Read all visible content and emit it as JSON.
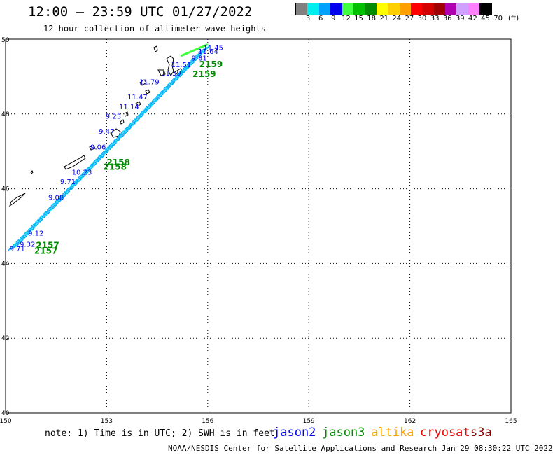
{
  "title": "12:00 – 23:59 UTC 01/27/2022",
  "subtitle": "12 hour collection of altimeter wave heights",
  "legend": {
    "unit": "(ft)",
    "labels": [
      "3",
      "6",
      "9",
      "12",
      "15",
      "18",
      "21",
      "24",
      "27",
      "30",
      "33",
      "36",
      "39",
      "42",
      "45",
      "70"
    ],
    "colors": [
      "#808080",
      "#00eeee",
      "#00a0ff",
      "#0000ee",
      "#40ff40",
      "#00c000",
      "#008c00",
      "#ffff00",
      "#ffd000",
      "#ffa000",
      "#ff0000",
      "#d40000",
      "#a00000",
      "#b000b0",
      "#d0a0ff",
      "#ff80ff",
      "#000000"
    ]
  },
  "axes": {
    "lon_ticks": [
      "150",
      "153",
      "156",
      "159",
      "162",
      "165"
    ],
    "lat_ticks": [
      "50",
      "48",
      "46",
      "44",
      "42",
      "40"
    ]
  },
  "map_data": {
    "lon_range": [
      150,
      165
    ],
    "lat_range": [
      40,
      50
    ],
    "tracks": [
      {
        "satellite": "jason3",
        "time_labels": [
          {
            "text": "2159",
            "lon": 155.75,
            "lat": 49.34
          },
          {
            "text": "2159",
            "lon": 155.55,
            "lat": 49.08
          },
          {
            "text": "2158",
            "lon": 153.0,
            "lat": 46.72
          },
          {
            "text": "2158",
            "lon": 152.9,
            "lat": 46.6
          },
          {
            "text": "2157",
            "lon": 150.9,
            "lat": 44.5
          },
          {
            "text": "2157",
            "lon": 150.85,
            "lat": 44.35
          }
        ],
        "points": [
          {
            "lon": 155.95,
            "lat": 49.78,
            "swh": "11.45"
          },
          {
            "lon": 155.8,
            "lat": 49.68,
            "swh": "11.64"
          },
          {
            "lon": 155.6,
            "lat": 49.5,
            "swh": "9.81"
          },
          {
            "lon": 155.0,
            "lat": 49.33,
            "swh": "11.51"
          },
          {
            "lon": 154.7,
            "lat": 49.1,
            "swh": "11.59"
          },
          {
            "lon": 154.05,
            "lat": 48.87,
            "swh": "11.79"
          },
          {
            "lon": 153.7,
            "lat": 48.46,
            "swh": "11.47"
          },
          {
            "lon": 153.45,
            "lat": 48.2,
            "swh": "11.14"
          },
          {
            "lon": 153.05,
            "lat": 47.95,
            "swh": "9.23"
          },
          {
            "lon": 152.85,
            "lat": 47.55,
            "swh": "9.47"
          },
          {
            "lon": 152.6,
            "lat": 47.13,
            "swh": "9.06"
          },
          {
            "lon": 152.05,
            "lat": 46.45,
            "swh": "10.23"
          },
          {
            "lon": 151.7,
            "lat": 46.2,
            "swh": "9.71"
          },
          {
            "lon": 151.35,
            "lat": 45.78,
            "swh": "9.08"
          },
          {
            "lon": 150.75,
            "lat": 44.82,
            "swh": "9.12"
          },
          {
            "lon": 150.5,
            "lat": 44.52,
            "swh": "9.32"
          },
          {
            "lon": 150.2,
            "lat": 44.4,
            "swh": "9.71"
          }
        ]
      }
    ]
  },
  "footnote": "note: 1) Time is in UTC; 2) SWH is in feet",
  "satellites": [
    {
      "name": "jason2",
      "color": "#0000ee"
    },
    {
      "name": "jason3",
      "color": "#008c00"
    },
    {
      "name": "altika",
      "color": "#ffa000"
    },
    {
      "name": "cryosat",
      "color": "#ee0000"
    },
    {
      "name": "s3a",
      "color": "#8b0000"
    }
  ],
  "credit": "NOAA/NESDIS Center for Satellite Applications and Research   Jan 29 08:30:22 UTC 2022"
}
